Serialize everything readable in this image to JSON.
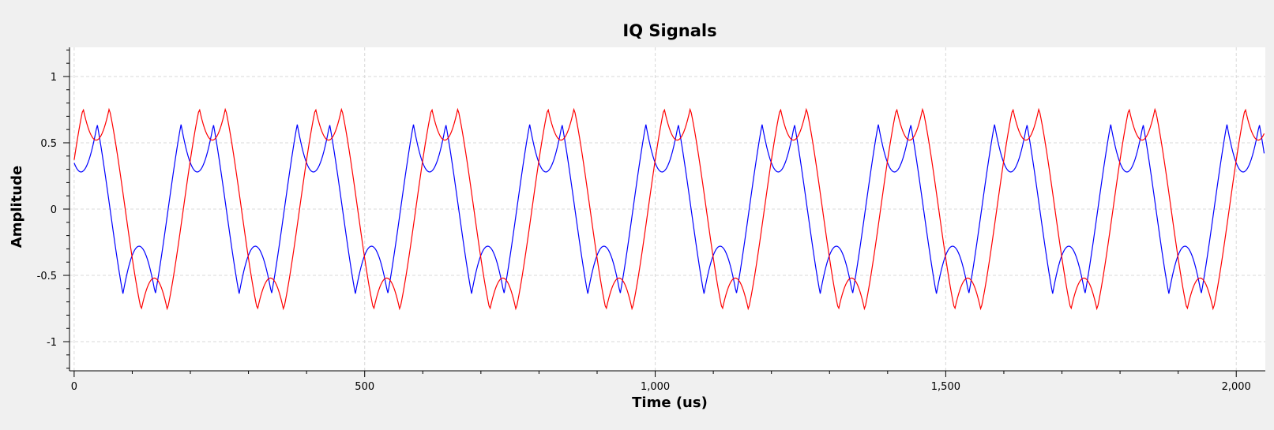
{
  "chart_data": {
    "type": "line",
    "title": "IQ Signals",
    "xlabel": "Time (us)",
    "ylabel": "Amplitude",
    "xlim": [
      -8,
      2050
    ],
    "ylim": [
      -1.22,
      1.22
    ],
    "grid": true,
    "legend": "none",
    "x_ticks": [
      0,
      500,
      1000,
      1500,
      2000
    ],
    "x_tick_labels": [
      "0",
      "500",
      "1,000",
      "1,500",
      "2,000"
    ],
    "x_minor_step": 100,
    "y_ticks": [
      1,
      0.5,
      0,
      -0.5,
      -1
    ],
    "y_tick_labels": [
      "1",
      "0.5",
      "0",
      "-0.5",
      "-1"
    ],
    "y_minor_step": 0.1,
    "sample_rate_points": 2048,
    "x_range": [
      0,
      2048
    ],
    "series": [
      {
        "color": "#0000ff",
        "formula": "sin(2*pi*t/200 + 1.2) * folded(|sin|>0.64)",
        "period_us": 200,
        "phase_rad": 1.2,
        "fold_low": -0.64,
        "fold_high": 0.64
      },
      {
        "color": "#ff0000",
        "formula": "sin(2*pi*t/200 + 0.38) * folded(|sin|>0.76)",
        "period_us": 200,
        "phase_rad": 0.38,
        "fold_low": -0.76,
        "fold_high": 0.76
      }
    ],
    "colors": {
      "background": "#f0f0f0",
      "plot_background": "#ffffff",
      "grid": "#d9d9d9",
      "axis": "#000000"
    }
  }
}
